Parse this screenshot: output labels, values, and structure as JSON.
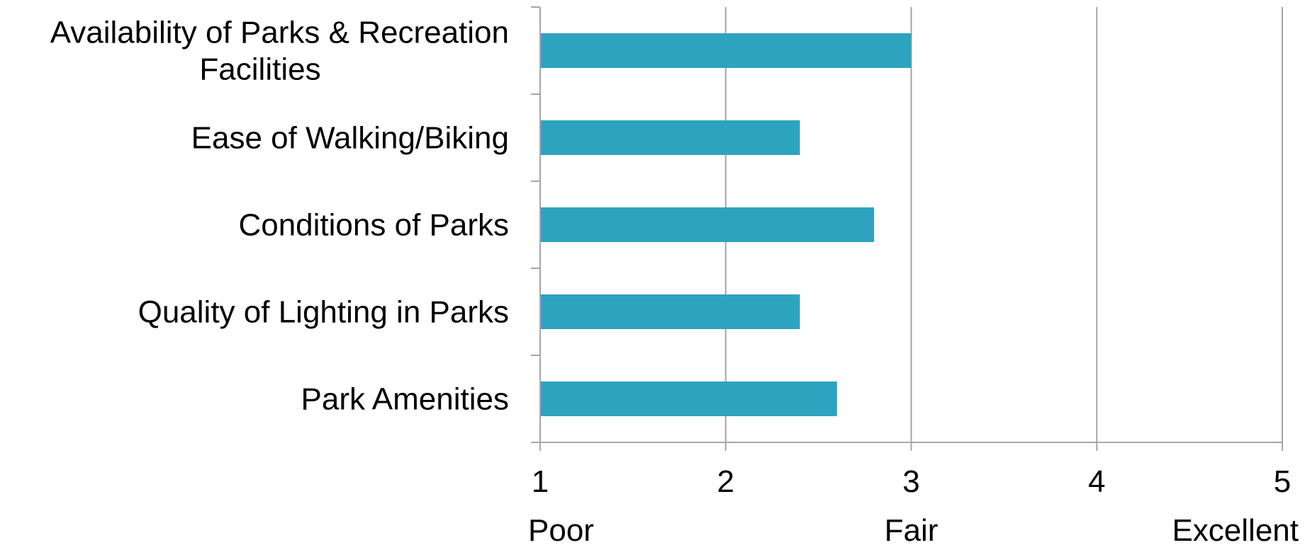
{
  "chart_data": {
    "type": "bar",
    "orientation": "horizontal",
    "categories": [
      "Availability of Parks & Recreation Facilities",
      "Ease of Walking/Biking",
      "Conditions of Parks",
      "Quality of Lighting in Parks",
      "Park Amenities"
    ],
    "category_lines": [
      [
        "Availability of Parks & Recreation",
        "Facilities"
      ],
      [
        "Ease of Walking/Biking"
      ],
      [
        "Conditions of Parks"
      ],
      [
        "Quality of Lighting in Parks"
      ],
      [
        "Park Amenities"
      ]
    ],
    "values": [
      3.0,
      2.4,
      2.8,
      2.4,
      2.6
    ],
    "xlim": [
      1,
      5
    ],
    "xticks": [
      1,
      2,
      3,
      4,
      5
    ],
    "xtick_labels": [
      "1",
      "2",
      "3",
      "4",
      "5"
    ],
    "scale_labels": [
      {
        "value": 1,
        "text": "Poor"
      },
      {
        "value": 3,
        "text": "Fair"
      },
      {
        "value": 5,
        "text": "Excellent"
      }
    ],
    "grid": "vertical",
    "legend": "none",
    "bar_color": "#2ea3bf",
    "grid_color": "#a6a6a6"
  }
}
